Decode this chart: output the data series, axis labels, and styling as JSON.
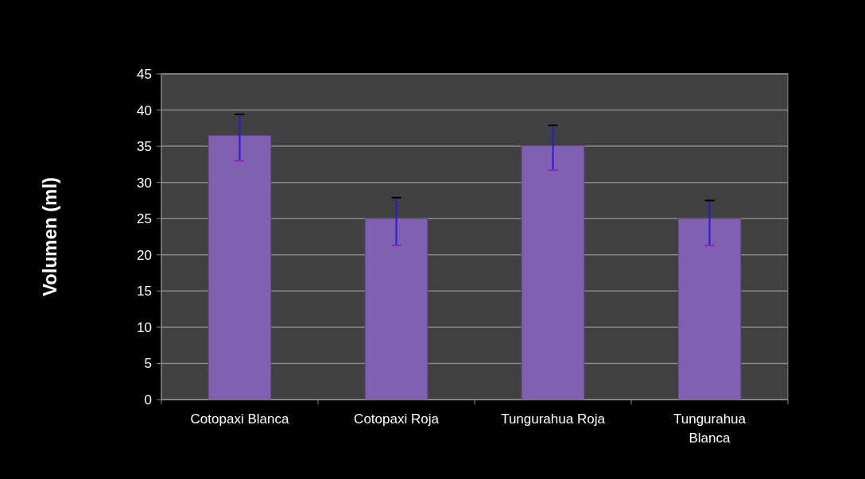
{
  "chart_data": {
    "type": "bar",
    "ylabel": "Volumen (ml)",
    "categories": [
      "Cotopaxi Blanca",
      "Cotopaxi Roja",
      "Tungurahua Roja",
      "Tungurahua Blanca"
    ],
    "values": [
      36.5,
      25,
      35.1,
      25
    ],
    "errors": [
      [
        33,
        39.4
      ],
      [
        21.3,
        27.9
      ],
      [
        31.7,
        37.9
      ],
      [
        21.3,
        27.5
      ]
    ],
    "color": "#8060b0",
    "ylim": [
      0,
      45
    ],
    "yticks": [
      0,
      5,
      10,
      15,
      20,
      25,
      30,
      35,
      40,
      45
    ],
    "grid": "y"
  }
}
